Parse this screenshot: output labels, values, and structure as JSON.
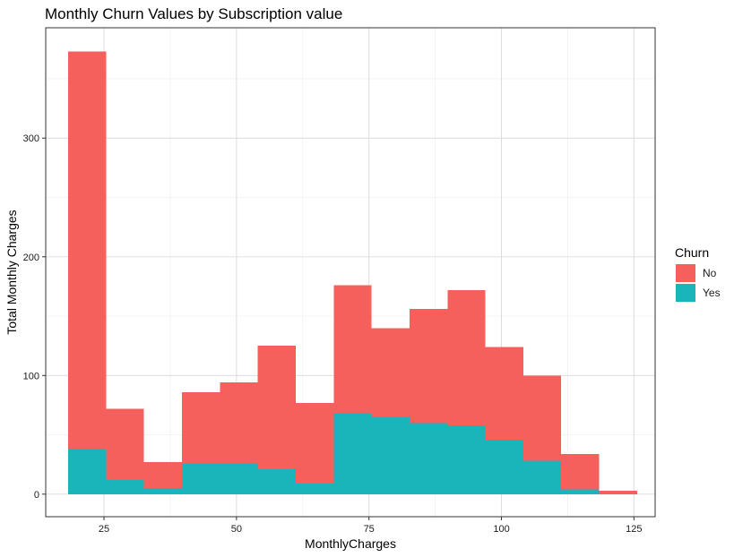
{
  "chart_data": {
    "type": "bar",
    "stacked": true,
    "title": "Monthly Churn Values by Subscription value",
    "xlabel": "MonthlyCharges",
    "ylabel": "Total Monthly Charges",
    "xlim": [
      14,
      129
    ],
    "ylim": [
      -19,
      393
    ],
    "x_ticks": [
      25,
      50,
      75,
      100,
      125
    ],
    "y_ticks": [
      0,
      100,
      200,
      300
    ],
    "grid": true,
    "legend": {
      "title": "Churn",
      "position": "right"
    },
    "bins": [
      [
        18.25,
        25.41
      ],
      [
        25.41,
        32.56
      ],
      [
        32.56,
        39.72
      ],
      [
        39.72,
        46.87
      ],
      [
        46.87,
        54.03
      ],
      [
        54.03,
        61.18
      ],
      [
        61.18,
        68.34
      ],
      [
        68.34,
        75.5
      ],
      [
        75.5,
        82.65
      ],
      [
        82.65,
        89.81
      ],
      [
        89.81,
        96.96
      ],
      [
        96.96,
        104.12
      ],
      [
        104.12,
        111.27
      ],
      [
        111.27,
        118.43
      ],
      [
        118.43,
        125.58
      ]
    ],
    "series": [
      {
        "name": "Yes",
        "color": "#19B5BB",
        "values": [
          38,
          12,
          5,
          26,
          26,
          21,
          9,
          68,
          65,
          60,
          58,
          46,
          28,
          4,
          0
        ]
      },
      {
        "name": "No",
        "color": "#F5605D",
        "values": [
          335,
          60,
          22,
          60,
          68,
          104,
          68,
          108,
          75,
          96,
          114,
          78,
          72,
          30,
          3
        ]
      }
    ]
  }
}
